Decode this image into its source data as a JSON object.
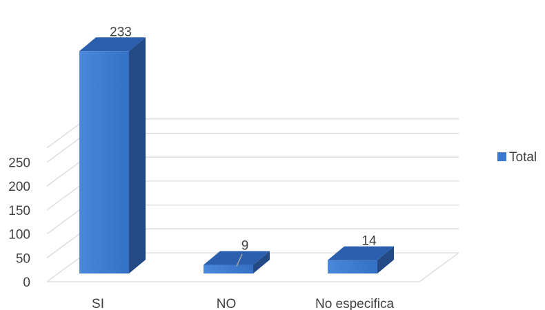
{
  "chart_data": {
    "type": "bar",
    "style": "3d-column",
    "categories": [
      "SI",
      "NO",
      "No especifica"
    ],
    "series": [
      {
        "name": "Total",
        "values": [
          233,
          9,
          14
        ]
      }
    ],
    "data_labels": [
      "233",
      "9",
      "14"
    ],
    "yticks": [
      "0",
      "50",
      "100",
      "150",
      "200",
      "250"
    ],
    "ylim": [
      0,
      280
    ],
    "grid": true,
    "legend": {
      "position": "right",
      "label": "Total"
    },
    "colors": {
      "front": "#3d79cf",
      "side": "#234a84",
      "top": "#2b5fae",
      "grid": "#d9d9d9",
      "text": "#404040"
    }
  }
}
